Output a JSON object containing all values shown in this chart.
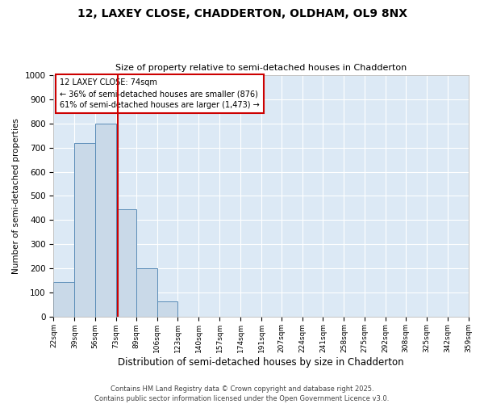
{
  "title_line1": "12, LAXEY CLOSE, CHADDERTON, OLDHAM, OL9 8NX",
  "title_line2": "Size of property relative to semi-detached houses in Chadderton",
  "xlabel": "Distribution of semi-detached houses by size in Chadderton",
  "ylabel": "Number of semi-detached properties",
  "bin_labels": [
    "22sqm",
    "39sqm",
    "56sqm",
    "73sqm",
    "89sqm",
    "106sqm",
    "123sqm",
    "140sqm",
    "157sqm",
    "174sqm",
    "191sqm",
    "207sqm",
    "224sqm",
    "241sqm",
    "258sqm",
    "275sqm",
    "292sqm",
    "308sqm",
    "325sqm",
    "342sqm",
    "359sqm"
  ],
  "bin_edges": [
    22,
    39,
    56,
    73,
    89,
    106,
    123,
    140,
    157,
    174,
    191,
    207,
    224,
    241,
    258,
    275,
    292,
    308,
    325,
    342,
    359
  ],
  "bar_heights": [
    145,
    720,
    800,
    445,
    200,
    65,
    0,
    0,
    0,
    0,
    0,
    0,
    0,
    0,
    0,
    0,
    0,
    0,
    0,
    0
  ],
  "bar_color": "#c9d9e8",
  "bar_edge_color": "#5b8db8",
  "property_size": 74,
  "property_label": "12 LAXEY CLOSE: 74sqm",
  "annotation_line1": "← 36% of semi-detached houses are smaller (876)",
  "annotation_line2": "61% of semi-detached houses are larger (1,473) →",
  "vline_color": "#cc0000",
  "box_edge_color": "#cc0000",
  "ylim": [
    0,
    1000
  ],
  "yticks": [
    0,
    100,
    200,
    300,
    400,
    500,
    600,
    700,
    800,
    900,
    1000
  ],
  "background_color": "#ffffff",
  "plot_bg_color": "#dce9f5",
  "grid_color": "#ffffff",
  "footer_line1": "Contains HM Land Registry data © Crown copyright and database right 2025.",
  "footer_line2": "Contains public sector information licensed under the Open Government Licence v3.0."
}
